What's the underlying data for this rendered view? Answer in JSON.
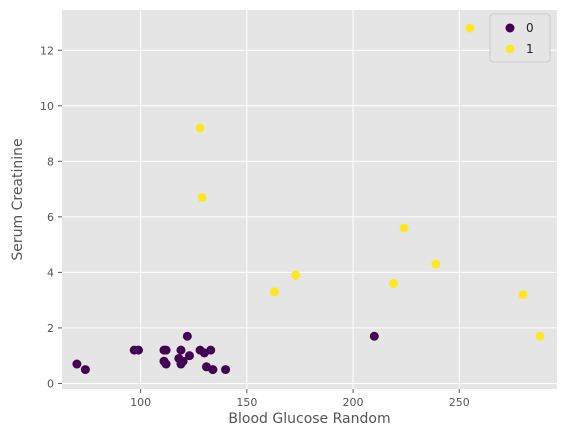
{
  "chart_data": {
    "type": "scatter",
    "title": "",
    "xlabel": "Blood Glucose Random",
    "ylabel": "Serum Creatinine",
    "xlim": [
      63,
      296
    ],
    "ylim": [
      -0.2,
      13.45
    ],
    "xticks": [
      100,
      150,
      200,
      250
    ],
    "yticks": [
      0,
      2,
      4,
      6,
      8,
      10,
      12
    ],
    "grid": true,
    "legend": {
      "placement": "top-right"
    },
    "series": [
      {
        "name": "0",
        "color": "#440154",
        "points": [
          [
            70,
            0.7
          ],
          [
            74,
            0.5
          ],
          [
            97,
            1.2
          ],
          [
            99,
            1.2
          ],
          [
            111,
            0.8
          ],
          [
            111,
            1.2
          ],
          [
            112,
            1.2
          ],
          [
            112,
            0.7
          ],
          [
            118,
            0.9
          ],
          [
            119,
            0.7
          ],
          [
            119,
            1.2
          ],
          [
            120,
            0.8
          ],
          [
            122,
            1.7
          ],
          [
            123,
            1.0
          ],
          [
            128,
            1.2
          ],
          [
            130,
            1.1
          ],
          [
            131,
            0.6
          ],
          [
            133,
            1.2
          ],
          [
            134,
            0.5
          ],
          [
            140,
            0.5
          ],
          [
            210,
            1.7
          ]
        ]
      },
      {
        "name": "1",
        "color": "#fde725",
        "points": [
          [
            128,
            9.2
          ],
          [
            129,
            6.7
          ],
          [
            163,
            3.3
          ],
          [
            173,
            3.9
          ],
          [
            219,
            3.6
          ],
          [
            224,
            5.6
          ],
          [
            239,
            4.3
          ],
          [
            255,
            12.8
          ],
          [
            280,
            3.2
          ],
          [
            288,
            1.7
          ]
        ]
      }
    ]
  }
}
